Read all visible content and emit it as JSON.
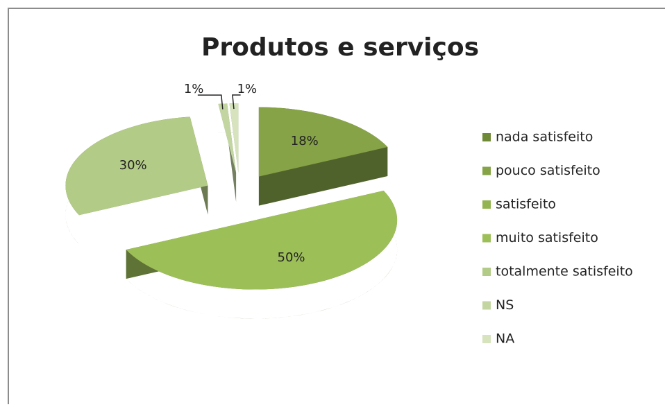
{
  "chart_data": {
    "type": "pie3d",
    "title": "Produtos e serviços",
    "categories": [
      "nada satisfeito",
      "pouco satisfeito",
      "satisfeito",
      "muito satisfeito",
      "totalmente satisfeito",
      "NS",
      "NA"
    ],
    "values": [
      0,
      18,
      0,
      50,
      30,
      1,
      1
    ],
    "value_labels": [
      null,
      "18%",
      null,
      "50%",
      "30%",
      "1%",
      "1%"
    ],
    "colors": [
      "#6f8a36",
      "#86a347",
      "#93b451",
      "#9dbf58",
      "#b2cb86",
      "#c3d6a2",
      "#d6e3bd"
    ],
    "legend": "right"
  }
}
